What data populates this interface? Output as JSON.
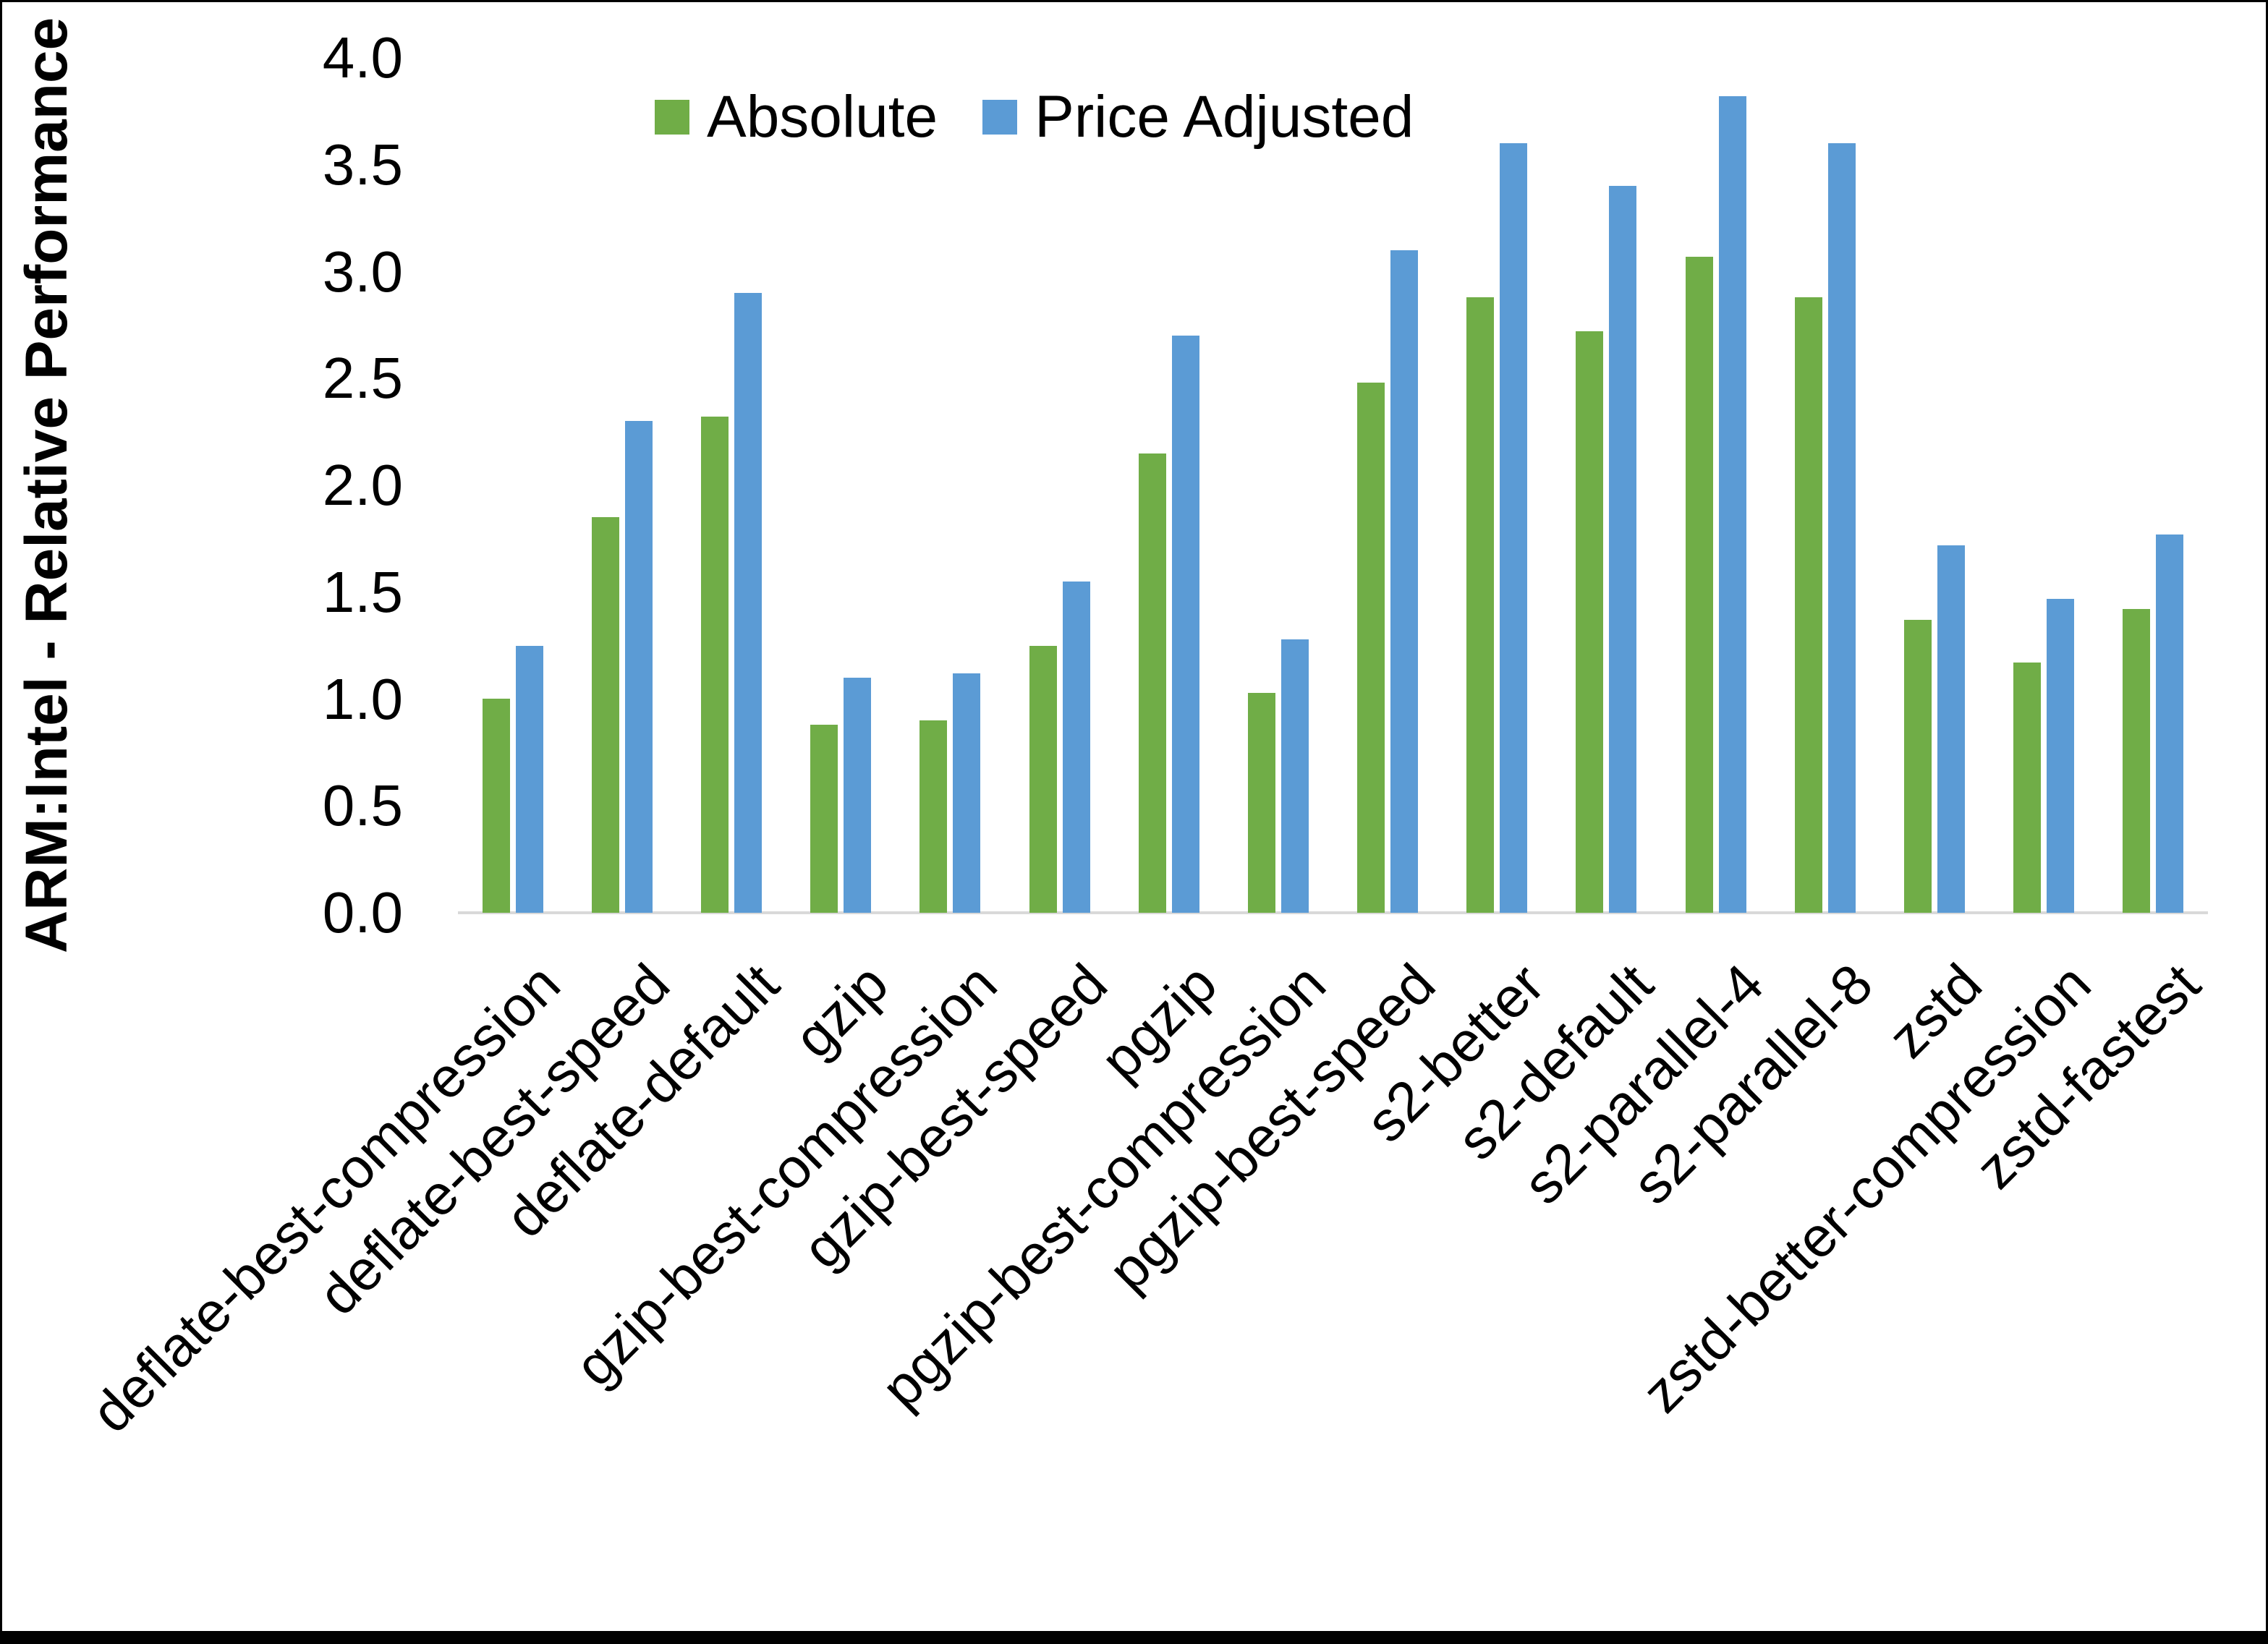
{
  "chart_data": {
    "type": "bar",
    "title": "",
    "xlabel": "",
    "ylabel": "ARM:Intel - Relative Performance",
    "ylim": [
      0.0,
      4.0
    ],
    "ytick_step": 0.5,
    "ytick_labels": [
      "0.0",
      "0.5",
      "1.0",
      "1.5",
      "2.0",
      "2.5",
      "3.0",
      "3.5",
      "4.0"
    ],
    "grid": false,
    "legend_position": "top-center",
    "categories": [
      "deflate-best-compression",
      "deflate-best-speed",
      "deflate-default",
      "gzip",
      "gzip-best-compression",
      "gzip-best-speed",
      "pgzip",
      "pgzip-best-compression",
      "pgzip-best-speed",
      "s2-better",
      "s2-default",
      "s2-parallel-4",
      "s2-parallel-8",
      "zstd",
      "zstd-better-compression",
      "zstd-fastest"
    ],
    "series": [
      {
        "name": "Absolute",
        "color": "#70AD47",
        "values": [
          1.0,
          1.85,
          2.32,
          0.88,
          0.9,
          1.25,
          2.15,
          1.03,
          2.48,
          2.88,
          2.72,
          3.07,
          2.88,
          1.37,
          1.17,
          1.42
        ]
      },
      {
        "name": "Price Adjusted",
        "color": "#5B9BD5",
        "values": [
          1.25,
          2.3,
          2.9,
          1.1,
          1.12,
          1.55,
          2.7,
          1.28,
          3.1,
          3.6,
          3.4,
          3.82,
          3.6,
          1.72,
          1.47,
          1.77
        ]
      }
    ]
  },
  "colors": {
    "axis_line": "#D9D9D9",
    "text": "#000000",
    "background": "#FFFFFF",
    "frame": "#000000"
  }
}
